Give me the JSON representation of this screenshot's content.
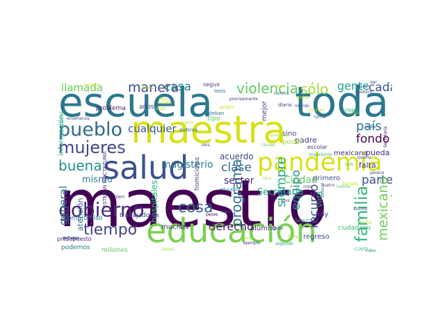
{
  "words": [
    {
      "text": "maestro",
      "color": "#440154"
    },
    {
      "text": "escuela",
      "color": "#2a788e"
    },
    {
      "text": "toda",
      "color": "#2a788e"
    },
    {
      "text": "maestra",
      "color": "#d7e219"
    },
    {
      "text": "salud",
      "color": "#3b528b"
    },
    {
      "text": "educación",
      "color": "#7ad151"
    },
    {
      "text": "pandemia",
      "color": "#d7e219"
    },
    {
      "text": "pueblo",
      "color": "#31688e"
    },
    {
      "text": "mujeres",
      "color": "#414487"
    },
    {
      "text": "gobierno",
      "color": "#482878"
    },
    {
      "text": "tiempo",
      "color": "#414487"
    },
    {
      "text": "buena",
      "color": "#21918c"
    },
    {
      "text": "manera",
      "color": "#3e4989"
    },
    {
      "text": "violencia",
      "color": "#5ec962"
    },
    {
      "text": "sólo",
      "color": "#a0da39"
    },
    {
      "text": "casa",
      "color": "#26828e"
    },
    {
      "text": "llamada",
      "color": "#6ccd5a"
    },
    {
      "text": "gente",
      "color": "#1fa187"
    },
    {
      "text": "cada",
      "color": "#3b528b"
    },
    {
      "text": "país",
      "color": "#2c728e"
    },
    {
      "text": "fondo",
      "color": "#440154"
    },
    {
      "text": "familia",
      "color": "#35b779"
    },
    {
      "text": "parte",
      "color": "#3e4989"
    },
    {
      "text": "mexicano",
      "color": "#6ece58"
    },
    {
      "text": "secretario",
      "color": "#2c728e"
    },
    {
      "text": "programa",
      "color": "#2c728e"
    },
    {
      "text": "siempre",
      "color": "#22a884"
    },
    {
      "text": "recurso",
      "color": "#3b528b"
    },
    {
      "text": "equipo",
      "color": "#21918c"
    },
    {
      "text": "clase",
      "color": "#31688e"
    },
    {
      "text": "sector",
      "color": "#482878"
    },
    {
      "text": "cosa",
      "color": "#31688e"
    },
    {
      "text": "derecho",
      "color": "#481f70"
    },
    {
      "text": "magisterio",
      "color": "#287c8e"
    },
    {
      "text": "cualquier",
      "color": "#3b528b"
    },
    {
      "text": "general",
      "color": "#2a788e"
    },
    {
      "text": "mismo",
      "color": "#287c8e"
    },
    {
      "text": "Ciudad",
      "color": "#5ec962"
    },
    {
      "text": "Secretaría",
      "color": "#22a884"
    },
    {
      "text": "acuerdo",
      "color": "#404387"
    },
    {
      "text": "padre",
      "color": "#443a83"
    },
    {
      "text": "mexicana",
      "color": "#472d7b"
    },
    {
      "text": "pueda",
      "color": "#482878"
    },
    {
      "text": "falta",
      "color": "#46327e"
    },
    {
      "text": "primero",
      "color": "#3b528b"
    },
    {
      "text": "vida",
      "color": "#2db27d"
    },
    {
      "text": "hoy",
      "color": "#3b528b"
    },
    {
      "text": "regreso",
      "color": "#3e4989"
    },
    {
      "text": "alumno",
      "color": "#472d7b"
    },
    {
      "text": "ciudadano",
      "color": "#35b779"
    },
    {
      "text": "muchas",
      "color": "#443983"
    },
    {
      "text": "hospitales",
      "color": "#2db27d"
    },
    {
      "text": "atención",
      "color": "#31688e"
    },
    {
      "text": "compromiso",
      "color": "#2c728e"
    },
    {
      "text": "trabajadores",
      "color": "#404387"
    },
    {
      "text": "información",
      "color": "#1fa187"
    },
    {
      "text": "problema",
      "color": "#481769"
    },
    {
      "text": "años",
      "color": "#443a83"
    },
    {
      "text": "distinta",
      "color": "#31688e"
    },
    {
      "text": "sino",
      "color": "#3e4989"
    },
    {
      "text": "poder",
      "color": "#a5db36"
    },
    {
      "text": "escolar",
      "color": "#414487"
    },
    {
      "text": "mejor",
      "color": "#3e4989"
    },
    {
      "text": "tipo",
      "color": "#5ec962"
    },
    {
      "text": "seguir",
      "color": "#414487"
    },
    {
      "text": "tesis",
      "color": "#31688e"
    },
    {
      "text": "diario",
      "color": "#46327e"
    },
    {
      "text": "presupuesto",
      "color": "#482878"
    },
    {
      "text": "podemos",
      "color": "#2a788e"
    },
    {
      "text": "millones",
      "color": "#5ec962"
    },
    {
      "text": "ejemplo",
      "color": "#472d7b"
    },
    {
      "text": "segundo",
      "color": "#1fa187"
    },
    {
      "text": "COVID",
      "color": "#35b779"
    },
    {
      "text": "defensa",
      "color": "#404387"
    },
    {
      "text": "homicidios",
      "color": "#443983"
    },
    {
      "text": "ESTEBAN MOCTEZUMA",
      "color": "#46327e"
    },
    {
      "text": "nacional",
      "color": "#2db27d"
    },
    {
      "text": "enseñanza",
      "color": "#3e4989"
    },
    {
      "text": "Esteban",
      "color": "#2c728e"
    },
    {
      "text": "precisamente",
      "color": "#46327e"
    },
    {
      "text": "ciencia",
      "color": "#31688e"
    },
    {
      "text": "mundo",
      "color": "#404387"
    },
    {
      "text": "Seguro",
      "color": "#2db27d"
    },
    {
      "text": "cuatro",
      "color": "#414487"
    },
    {
      "text": "cinco",
      "color": "#3e4989"
    },
    {
      "text": "casos",
      "color": "#3e4989"
    },
    {
      "text": "público",
      "color": "#404387"
    },
    {
      "text": "tomar",
      "color": "#3e4989"
    },
    {
      "text": "importante",
      "color": "#35b779"
    },
    {
      "text": "asunto",
      "color": "#3b528b"
    },
    {
      "text": "nadie",
      "color": "#2c728e"
    },
    {
      "text": "quiero",
      "color": "#3e4989"
    },
    {
      "text": "cabo",
      "color": "#21918c"
    },
    {
      "text": "federal",
      "color": "#2a788e"
    },
    {
      "text": "educativa",
      "color": "#26828e"
    },
    {
      "text": "pesos",
      "color": "#440154"
    },
    {
      "text": "hecho",
      "color": "#8fd744"
    },
    {
      "text": "debe",
      "color": "#3e4989"
    },
    {
      "text": "camas",
      "color": "#5ec962"
    },
    {
      "text": "bien",
      "color": "#443a83"
    },
    {
      "text": "seis",
      "color": "#3b528b"
    },
    {
      "text": "viene",
      "color": "#3e4989"
    },
    {
      "text": "social",
      "color": "#a0da39"
    },
    {
      "text": "tienen",
      "color": "#a0da39"
    },
    {
      "text": "tenido",
      "color": "#b5de2b"
    },
    {
      "text": "mes",
      "color": "#3b528b"
    },
    {
      "text": "dar",
      "color": "#404387"
    },
    {
      "text": "llamado",
      "color": "#c8e020"
    },
    {
      "text": "pasa",
      "color": "#3b528b"
    },
    {
      "text": "parece",
      "color": "#3e4989"
    },
    {
      "text": "Secretaria",
      "color": "#481769"
    },
    {
      "text": "deja",
      "color": "#c2df23"
    },
    {
      "text": "cuerpo",
      "color": "#b5de2b"
    },
    {
      "text": "madre",
      "color": "#c2df23"
    },
    {
      "text": "proceso",
      "color": "#d2e21b"
    },
    {
      "text": "ingresar",
      "color": "#3e4989"
    },
    {
      "text": "cuidado",
      "color": "#2db27d"
    },
    {
      "text": "peligro",
      "color": "#b5de2b"
    },
    {
      "text": "quedarse",
      "color": "#b5de2b"
    },
    {
      "text": "habido",
      "color": "#5ec962"
    },
    {
      "text": "niños",
      "color": "#7ad151"
    },
    {
      "text": "clases",
      "color": "#a5db36"
    },
    {
      "text": "visto",
      "color": "#c8e020"
    },
    {
      "text": "partir",
      "color": "#b5de2b"
    },
    {
      "text": "tiene",
      "color": "#a0da39"
    },
    {
      "text": "plan",
      "color": "#c8e020"
    },
    {
      "text": "lado",
      "color": "#5ec962"
    },
    {
      "text": "hacia",
      "color": "#a5db36"
    },
    {
      "text": "sino",
      "color": "#a0da39"
    }
  ]
}
